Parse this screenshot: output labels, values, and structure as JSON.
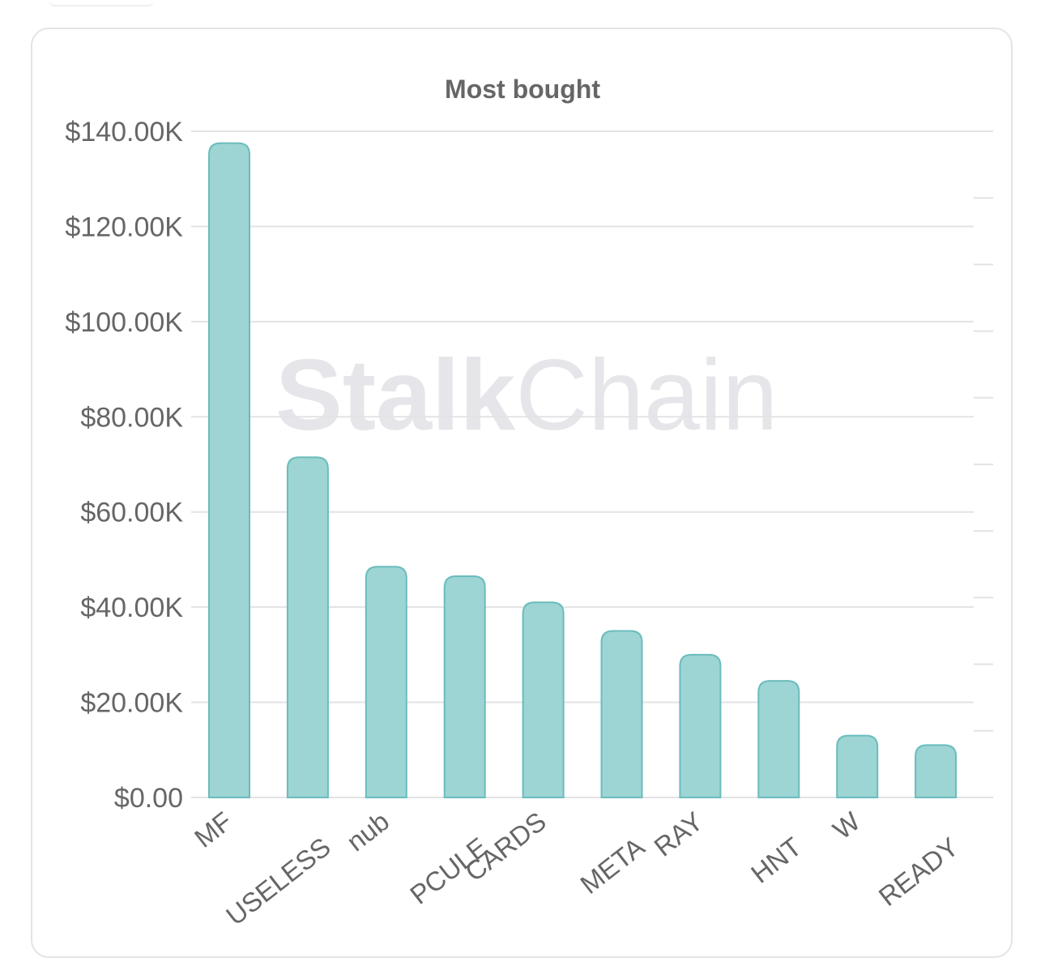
{
  "watermark": {
    "part1": "Stalk",
    "part2": "Chain"
  },
  "colors": {
    "bar_fill": "#9dd4d4",
    "bar_stroke": "#6bbcbc",
    "grid": "#e3e3e6",
    "text": "#666666",
    "watermark": "#e6e6ea"
  },
  "chart_data": {
    "type": "bar",
    "title": "Most bought",
    "xlabel": "",
    "ylabel": "",
    "ylim": [
      0,
      140000
    ],
    "grid": true,
    "yticks": [
      {
        "value": 0,
        "label": "$0.00"
      },
      {
        "value": 20000,
        "label": "$20.00K"
      },
      {
        "value": 40000,
        "label": "$40.00K"
      },
      {
        "value": 60000,
        "label": "$60.00K"
      },
      {
        "value": 80000,
        "label": "$80.00K"
      },
      {
        "value": 100000,
        "label": "$100.00K"
      },
      {
        "value": 120000,
        "label": "$120.00K"
      },
      {
        "value": 140000,
        "label": "$140.00K"
      }
    ],
    "categories": [
      "MF",
      "USELESS",
      "nub",
      "PCULE",
      "CARDS",
      "META",
      "RAY",
      "HNT",
      "W",
      "READY"
    ],
    "values": [
      137500,
      71500,
      48500,
      46500,
      41000,
      35000,
      30000,
      24500,
      13000,
      11000
    ]
  }
}
